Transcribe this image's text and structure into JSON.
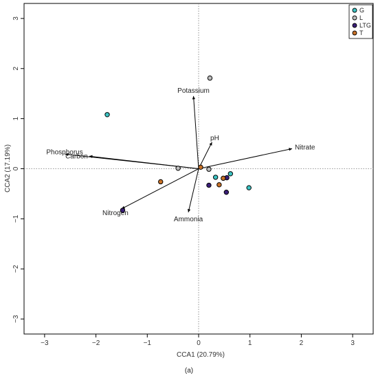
{
  "chart_data": {
    "type": "scatter",
    "title": "",
    "xlabel": "CCA1 (20.79%)",
    "ylabel": "CCA2 (17.19%)",
    "xlim": [
      -3.4,
      3.4
    ],
    "ylim": [
      -3.3,
      3.3
    ],
    "xticks": [
      -3,
      -2,
      -1,
      0,
      1,
      2,
      3
    ],
    "yticks": [
      -3,
      -2,
      -1,
      0,
      1,
      2,
      3
    ],
    "reference_lines": {
      "x": 0,
      "y": 0,
      "style": "dotted"
    },
    "grid": false,
    "legend_position": "top-right",
    "series": [
      {
        "name": "G",
        "color": "#3cc4c4",
        "points": [
          [
            -1.78,
            1.08
          ],
          [
            0.33,
            -0.17
          ],
          [
            0.62,
            -0.1
          ],
          [
            0.98,
            -0.38
          ]
        ]
      },
      {
        "name": "L",
        "color": "#bdbdbd",
        "points": [
          [
            0.22,
            1.81
          ],
          [
            -0.4,
            0.01
          ],
          [
            0.2,
            -0.01
          ]
        ]
      },
      {
        "name": "LTG",
        "color": "#3b1f78",
        "points": [
          [
            -1.48,
            -0.83
          ],
          [
            0.2,
            -0.33
          ],
          [
            0.54,
            -0.47
          ],
          [
            0.55,
            -0.18
          ]
        ]
      },
      {
        "name": "T",
        "color": "#c87127",
        "points": [
          [
            -0.74,
            -0.26
          ],
          [
            0.04,
            0.03
          ],
          [
            0.4,
            -0.32
          ],
          [
            0.48,
            -0.19
          ]
        ]
      }
    ],
    "vectors": [
      {
        "label": "Potassium",
        "end": [
          -0.1,
          1.45
        ]
      },
      {
        "label": "pH",
        "end": [
          0.26,
          0.53
        ]
      },
      {
        "label": "Nitrate",
        "end": [
          1.82,
          0.4
        ]
      },
      {
        "label": "Phosphorus",
        "end": [
          -2.6,
          0.29
        ]
      },
      {
        "label": "Carbon",
        "end": [
          -2.13,
          0.25
        ]
      },
      {
        "label": "Nitrogen",
        "end": [
          -1.5,
          -0.8
        ]
      },
      {
        "label": "Ammonia",
        "end": [
          -0.2,
          -0.87
        ]
      }
    ]
  },
  "caption": "(a)"
}
